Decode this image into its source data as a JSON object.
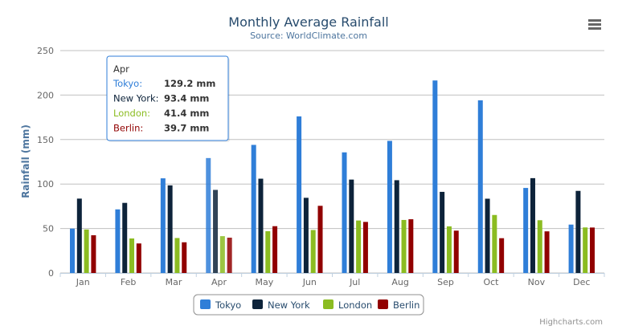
{
  "chart_data": {
    "type": "bar",
    "title": "Monthly Average Rainfall",
    "subtitle": "Source: WorldClimate.com",
    "xlabel": "",
    "ylabel": "Rainfall (mm)",
    "ylim": [
      0,
      250
    ],
    "yticks": [
      0,
      50,
      100,
      150,
      200,
      250
    ],
    "grid": true,
    "legend_placement": "bottom",
    "categories": [
      "Jan",
      "Feb",
      "Mar",
      "Apr",
      "May",
      "Jun",
      "Jul",
      "Aug",
      "Sep",
      "Oct",
      "Nov",
      "Dec"
    ],
    "series": [
      {
        "name": "Tokyo",
        "color": "#2f7ed8",
        "values": [
          49.9,
          71.5,
          106.4,
          129.2,
          144.0,
          176.0,
          135.6,
          148.5,
          216.4,
          194.1,
          95.6,
          54.4
        ]
      },
      {
        "name": "New York",
        "color": "#0d233a",
        "values": [
          83.6,
          78.8,
          98.5,
          93.4,
          106.0,
          84.5,
          105.0,
          104.3,
          91.2,
          83.5,
          106.6,
          92.3
        ]
      },
      {
        "name": "London",
        "color": "#8bbc21",
        "values": [
          48.9,
          38.8,
          39.3,
          41.4,
          47.0,
          48.3,
          59.0,
          59.6,
          52.4,
          65.2,
          59.3,
          51.2
        ]
      },
      {
        "name": "Berlin",
        "color": "#910000",
        "values": [
          42.4,
          33.2,
          34.5,
          39.7,
          52.6,
          75.5,
          57.4,
          60.4,
          47.6,
          39.1,
          46.8,
          51.1
        ]
      }
    ],
    "tooltip": {
      "header": "Apr",
      "rows": [
        {
          "name": "Tokyo:",
          "value": "129.2 mm"
        },
        {
          "name": "New York:",
          "value": "93.4 mm"
        },
        {
          "name": "London:",
          "value": "41.4 mm"
        },
        {
          "name": "Berlin:",
          "value": "39.7 mm"
        }
      ]
    }
  },
  "menu_icon": "hamburger-menu-icon",
  "credits": "Highcharts.com"
}
